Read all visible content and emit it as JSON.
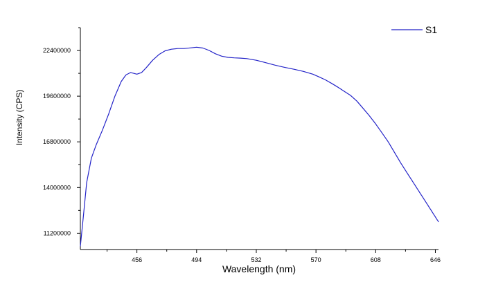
{
  "chart_data": {
    "type": "line",
    "xlabel": "Wavelength (nm)",
    "ylabel": "Intensity (CPS)",
    "x_ticks": [
      456,
      494,
      532,
      570,
      608,
      646
    ],
    "y_ticks": [
      11200000,
      14000000,
      16800000,
      19600000,
      22400000
    ],
    "y_tick_labels": [
      "11200000",
      "14000000",
      "16800000",
      "19600000",
      "22400000"
    ],
    "xlim": [
      420,
      648
    ],
    "ylim": [
      10200000,
      23800000
    ],
    "legend": {
      "position": "top-right"
    },
    "grid": false,
    "series": [
      {
        "name": "S1",
        "color": "#2323c8",
        "x": [
          420,
          422,
          424,
          427,
          430,
          434,
          438,
          442,
          446,
          449,
          452,
          456,
          459,
          462,
          466,
          470,
          474,
          478,
          482,
          486,
          490,
          494,
          498,
          502,
          506,
          510,
          514,
          518,
          522,
          526,
          532,
          538,
          544,
          550,
          556,
          562,
          568,
          572,
          576,
          580,
          584,
          588,
          592,
          596,
          600,
          604,
          608,
          612,
          616,
          620,
          624,
          628,
          632,
          636,
          640,
          644,
          648
        ],
        "y": [
          10400000,
          12300000,
          14300000,
          15800000,
          16600000,
          17500000,
          18500000,
          19600000,
          20500000,
          20900000,
          21050000,
          20950000,
          21050000,
          21350000,
          21800000,
          22150000,
          22380000,
          22480000,
          22520000,
          22520000,
          22560000,
          22600000,
          22550000,
          22400000,
          22200000,
          22050000,
          21980000,
          21950000,
          21930000,
          21900000,
          21800000,
          21650000,
          21500000,
          21370000,
          21250000,
          21120000,
          20950000,
          20780000,
          20600000,
          20380000,
          20150000,
          19900000,
          19650000,
          19300000,
          18850000,
          18400000,
          17900000,
          17350000,
          16800000,
          16150000,
          15500000,
          14900000,
          14300000,
          13700000,
          13100000,
          12500000,
          11900000
        ]
      }
    ]
  }
}
